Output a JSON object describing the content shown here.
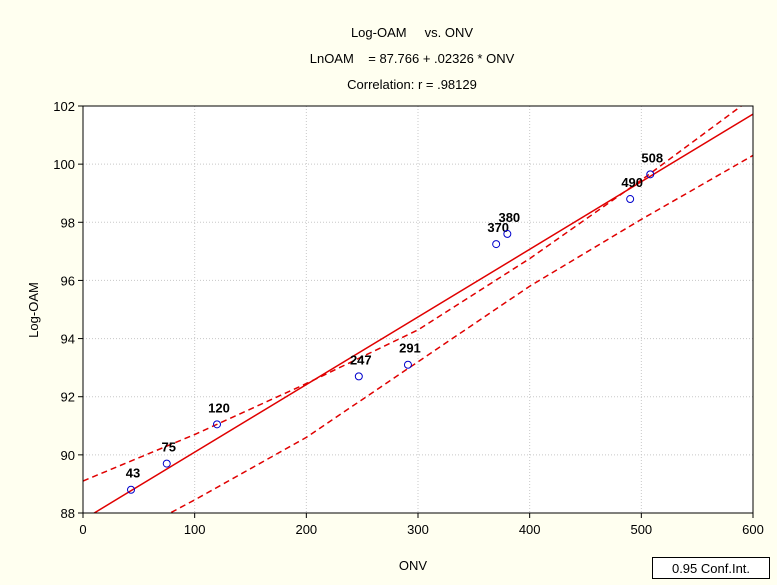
{
  "chart_data": {
    "type": "scatter",
    "title": "Log-OAM     vs. ONV",
    "subtitle": "LnOAM    = 87.766 + .02326 * ONV",
    "correlation_text": "Correlation: r = .98129",
    "xlabel": "ONV",
    "ylabel": "Log-OAM",
    "xlim": [
      0,
      600
    ],
    "ylim": [
      88,
      102
    ],
    "x_ticks": [
      0,
      100,
      200,
      300,
      400,
      500,
      600
    ],
    "y_ticks": [
      88,
      90,
      92,
      94,
      96,
      98,
      100,
      102
    ],
    "points": [
      {
        "label": "43",
        "x": 43,
        "y": 88.8
      },
      {
        "label": "75",
        "x": 75,
        "y": 89.7
      },
      {
        "label": "120",
        "x": 120,
        "y": 91.05
      },
      {
        "label": "247",
        "x": 247,
        "y": 92.7
      },
      {
        "label": "291",
        "x": 291,
        "y": 93.1
      },
      {
        "label": "370",
        "x": 370,
        "y": 97.25
      },
      {
        "label": "380",
        "x": 380,
        "y": 97.6
      },
      {
        "label": "490",
        "x": 490,
        "y": 98.8
      },
      {
        "label": "508",
        "x": 508,
        "y": 99.65
      }
    ],
    "regression": {
      "intercept": 87.766,
      "slope": 0.02326
    },
    "conf_band": {
      "upper": [
        [
          0,
          89.1
        ],
        [
          100,
          90.7
        ],
        [
          200,
          92.45
        ],
        [
          300,
          94.3
        ],
        [
          400,
          96.75
        ],
        [
          500,
          99.45
        ],
        [
          600,
          102.3
        ]
      ],
      "lower": [
        [
          0,
          86.4
        ],
        [
          100,
          88.45
        ],
        [
          200,
          90.6
        ],
        [
          300,
          93.2
        ],
        [
          400,
          95.8
        ],
        [
          500,
          98.1
        ],
        [
          600,
          100.3
        ]
      ]
    },
    "legend": "0.95 Conf.Int.",
    "colors": {
      "line": "#e00000",
      "points": "#0000cc",
      "background": "#fffff0"
    }
  }
}
